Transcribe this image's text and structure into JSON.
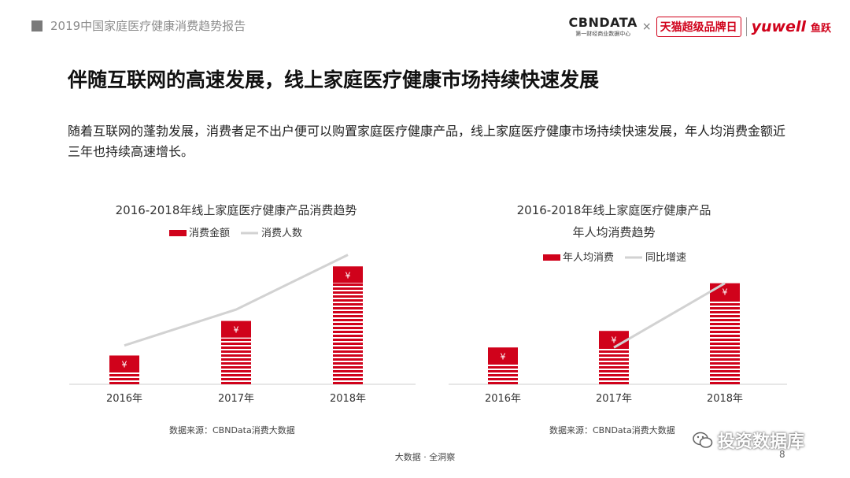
{
  "header": {
    "report_title": "2019中国家庭医疗健康消费趋势报告",
    "logo_cbn": "CBNDATA",
    "logo_cbn_sub": "第一财经商业数据中心",
    "logo_x": "×",
    "logo_tmall": "天猫超级品牌日",
    "logo_yuwell": "yuwell",
    "logo_yuwell_cn": "鱼跃"
  },
  "headline": "伴随互联网的高速发展，线上家庭医疗健康市场持续快速发展",
  "body_text": "随着互联网的蓬勃发展，消费者足不出户便可以购置家庭医疗健康产品，线上家庭医疗健康市场持续快速发展，年人均消费金额近三年也持续高速增长。",
  "currency_symbol": "¥",
  "colors": {
    "bar": "#d0021b",
    "line": "#d2d2d2"
  },
  "chart_data": [
    {
      "type": "bar",
      "title": "2016-2018年线上家庭医疗健康产品消费趋势",
      "categories": [
        "2016年",
        "2017年",
        "2018年"
      ],
      "series": [
        {
          "name": "消费金额",
          "type": "bar",
          "values": [
            1.0,
            2.2,
            4.1
          ]
        },
        {
          "name": "消费人数",
          "type": "line",
          "values": [
            1.35,
            2.6,
            4.5
          ]
        }
      ],
      "ylim": [
        0,
        4.6
      ],
      "source": "数据来源：CBNData消费大数据"
    },
    {
      "type": "bar",
      "title": "2016-2018年线上家庭医疗健康产品",
      "title_line2": "年人均消费趋势",
      "categories": [
        "2016年",
        "2017年",
        "2018年"
      ],
      "series": [
        {
          "name": "年人均消费",
          "type": "bar",
          "values": [
            1.0,
            1.45,
            2.75
          ]
        },
        {
          "name": "同比增速",
          "type": "line",
          "values": [
            null,
            1.0,
            2.75
          ]
        }
      ],
      "ylim": [
        0,
        3.6
      ],
      "source": "数据来源：CBNData消费大数据"
    }
  ],
  "footer": {
    "text": "大数据 · 全洞察",
    "page_number": "8"
  },
  "wechat_label": "投资数据库"
}
